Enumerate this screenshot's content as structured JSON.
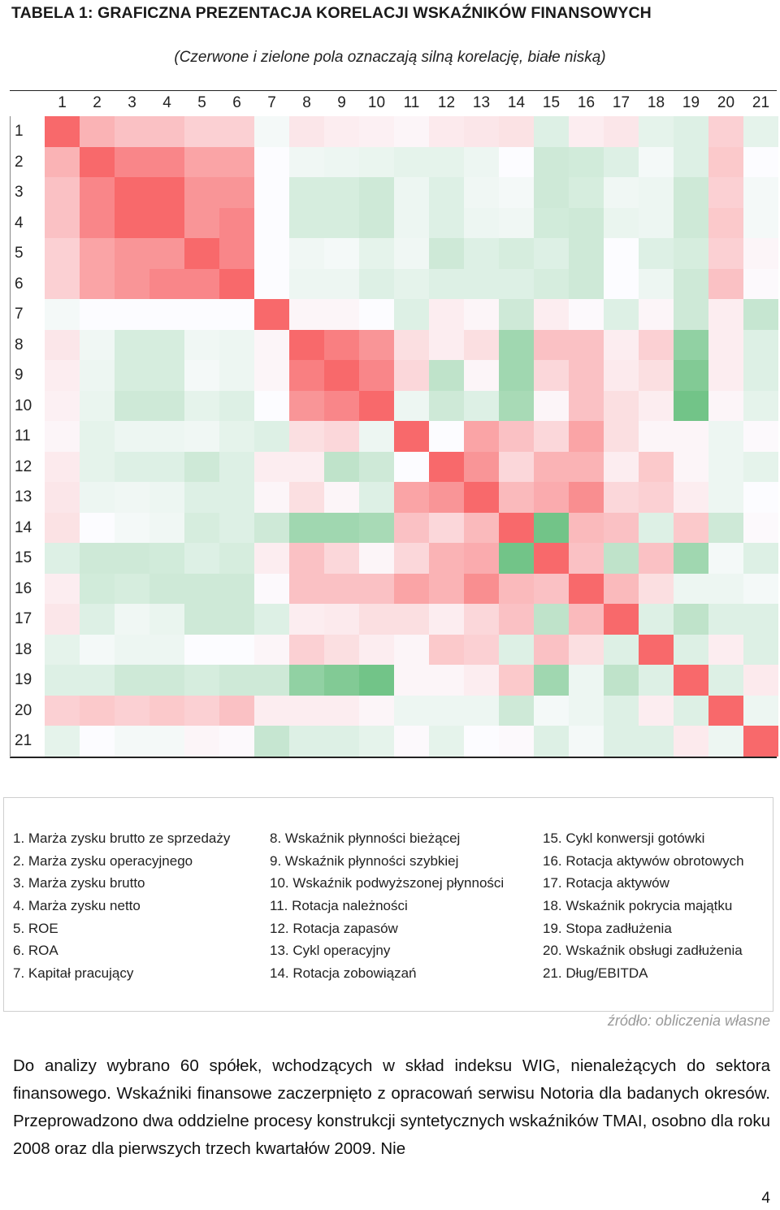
{
  "title": "TABELA 1: GRAFICZNA PREZENTACJA KORELACJI WSKAŹNIKÓW FINANSOWYCH",
  "subtitle": "(Czerwone i zielone pola oznaczają silną korelację, białe niską)",
  "heatmap": {
    "column_labels": [
      "1",
      "2",
      "3",
      "4",
      "5",
      "6",
      "7",
      "8",
      "9",
      "10",
      "11",
      "12",
      "13",
      "14",
      "15",
      "16",
      "17",
      "18",
      "19",
      "20",
      "21"
    ],
    "row_labels": [
      "1",
      "2",
      "3",
      "4",
      "5",
      "6",
      "7",
      "8",
      "9",
      "10",
      "11",
      "12",
      "13",
      "14",
      "15",
      "16",
      "17",
      "18",
      "19",
      "20",
      "21"
    ],
    "colors": {
      "strong_positive": "#f8696b",
      "neutral": "#fcfcff",
      "strong_negative": "#63be7b"
    },
    "correlation_levels": [
      [
        1.0,
        0.5,
        0.4,
        0.4,
        0.3,
        0.3,
        -0.05,
        0.15,
        0.1,
        0.08,
        0.05,
        0.12,
        0.15,
        0.18,
        -0.2,
        0.1,
        0.15,
        -0.15,
        -0.2,
        0.3,
        -0.15
      ],
      [
        0.5,
        1.0,
        0.8,
        0.8,
        0.6,
        0.6,
        0.0,
        -0.08,
        -0.1,
        -0.12,
        -0.15,
        -0.15,
        -0.1,
        0.0,
        -0.3,
        -0.28,
        -0.2,
        -0.05,
        -0.2,
        0.35,
        0.0
      ],
      [
        0.4,
        0.8,
        1.0,
        1.0,
        0.7,
        0.7,
        0.0,
        -0.25,
        -0.25,
        -0.3,
        -0.1,
        -0.2,
        -0.08,
        -0.05,
        -0.3,
        -0.25,
        -0.08,
        -0.1,
        -0.3,
        0.3,
        -0.05
      ],
      [
        0.4,
        0.8,
        1.0,
        1.0,
        0.7,
        0.8,
        0.0,
        -0.25,
        -0.25,
        -0.3,
        -0.1,
        -0.2,
        -0.1,
        -0.08,
        -0.28,
        -0.3,
        -0.12,
        -0.1,
        -0.3,
        0.35,
        -0.05
      ],
      [
        0.3,
        0.6,
        0.7,
        0.7,
        1.0,
        0.8,
        0.0,
        -0.08,
        -0.05,
        -0.15,
        -0.08,
        -0.3,
        -0.2,
        -0.25,
        -0.2,
        -0.3,
        0.0,
        -0.2,
        -0.25,
        0.3,
        0.05
      ],
      [
        0.3,
        0.6,
        0.7,
        0.8,
        0.8,
        1.0,
        0.0,
        -0.1,
        -0.1,
        -0.2,
        -0.15,
        -0.2,
        -0.2,
        -0.2,
        -0.25,
        -0.3,
        0.0,
        -0.1,
        -0.3,
        0.4,
        0.02
      ],
      [
        -0.05,
        0.0,
        0.0,
        0.0,
        0.0,
        0.0,
        1.0,
        0.05,
        0.05,
        0.0,
        -0.2,
        0.1,
        0.05,
        -0.3,
        0.1,
        0.02,
        -0.2,
        0.05,
        -0.3,
        0.1,
        -0.35
      ],
      [
        0.15,
        -0.08,
        -0.25,
        -0.25,
        -0.08,
        -0.1,
        0.05,
        1.0,
        0.85,
        0.7,
        0.2,
        0.1,
        0.2,
        -0.6,
        0.4,
        0.4,
        0.1,
        0.3,
        -0.7,
        0.1,
        -0.2
      ],
      [
        0.1,
        -0.1,
        -0.25,
        -0.25,
        -0.05,
        -0.1,
        0.05,
        0.85,
        1.0,
        0.8,
        0.25,
        -0.4,
        0.05,
        -0.6,
        0.25,
        0.4,
        0.12,
        0.2,
        -0.8,
        0.1,
        -0.2
      ],
      [
        0.08,
        -0.12,
        -0.3,
        -0.3,
        -0.15,
        -0.2,
        0.0,
        0.7,
        0.8,
        1.0,
        -0.1,
        -0.3,
        -0.2,
        -0.55,
        0.05,
        0.4,
        0.2,
        0.1,
        -0.9,
        0.05,
        -0.15
      ],
      [
        0.05,
        -0.15,
        -0.1,
        -0.1,
        -0.08,
        -0.15,
        -0.2,
        0.2,
        0.25,
        -0.1,
        1.0,
        0.0,
        0.6,
        0.4,
        0.25,
        0.6,
        0.2,
        0.05,
        0.05,
        -0.1,
        0.02
      ],
      [
        0.12,
        -0.15,
        -0.2,
        -0.2,
        -0.3,
        -0.2,
        0.1,
        0.1,
        -0.4,
        -0.3,
        0.0,
        1.0,
        0.7,
        0.25,
        0.5,
        0.5,
        0.1,
        0.35,
        0.05,
        -0.1,
        -0.15
      ],
      [
        0.15,
        -0.1,
        -0.08,
        -0.1,
        -0.2,
        -0.2,
        0.05,
        0.2,
        0.05,
        -0.2,
        0.6,
        0.7,
        1.0,
        0.45,
        0.55,
        0.75,
        0.25,
        0.3,
        0.1,
        -0.1,
        0.0
      ],
      [
        0.18,
        0.0,
        -0.05,
        -0.08,
        -0.25,
        -0.2,
        -0.3,
        -0.6,
        -0.6,
        -0.55,
        0.4,
        0.25,
        0.45,
        1.0,
        -0.9,
        0.45,
        0.4,
        -0.2,
        0.35,
        -0.3,
        0.02
      ],
      [
        -0.2,
        -0.3,
        -0.3,
        -0.28,
        -0.2,
        -0.25,
        0.1,
        0.4,
        0.25,
        0.05,
        0.25,
        0.5,
        0.55,
        -0.9,
        1.0,
        0.4,
        -0.4,
        0.4,
        -0.6,
        -0.05,
        -0.2
      ],
      [
        0.1,
        -0.28,
        -0.25,
        -0.3,
        -0.3,
        -0.3,
        0.02,
        0.4,
        0.4,
        0.4,
        0.6,
        0.5,
        0.75,
        0.45,
        0.4,
        1.0,
        0.45,
        0.2,
        -0.1,
        -0.1,
        -0.05
      ],
      [
        0.15,
        -0.2,
        -0.08,
        -0.12,
        -0.3,
        -0.3,
        -0.2,
        0.1,
        0.12,
        0.2,
        0.2,
        0.1,
        0.25,
        0.4,
        -0.4,
        0.45,
        1.0,
        -0.2,
        -0.4,
        -0.2,
        -0.2
      ],
      [
        -0.15,
        -0.05,
        -0.1,
        -0.1,
        0.0,
        0.0,
        0.05,
        0.3,
        0.2,
        0.1,
        0.05,
        0.35,
        0.3,
        -0.2,
        0.4,
        0.2,
        -0.2,
        1.0,
        -0.2,
        0.1,
        -0.2
      ],
      [
        -0.2,
        -0.2,
        -0.3,
        -0.3,
        -0.25,
        -0.3,
        -0.3,
        -0.7,
        -0.8,
        -0.9,
        0.05,
        0.05,
        0.1,
        0.35,
        -0.6,
        -0.1,
        -0.4,
        -0.2,
        1.0,
        -0.2,
        0.12
      ],
      [
        0.3,
        0.35,
        0.3,
        0.35,
        0.3,
        0.4,
        0.1,
        0.1,
        0.1,
        0.05,
        -0.1,
        -0.1,
        -0.1,
        -0.3,
        -0.05,
        -0.1,
        -0.2,
        0.1,
        -0.2,
        1.0,
        -0.1
      ],
      [
        -0.15,
        0.0,
        -0.05,
        -0.05,
        0.05,
        0.02,
        -0.35,
        -0.2,
        -0.2,
        -0.15,
        0.02,
        -0.15,
        0.0,
        0.02,
        -0.2,
        -0.05,
        -0.2,
        -0.2,
        0.12,
        -0.1,
        1.0
      ]
    ]
  },
  "legend": {
    "column1": [
      "1. Marża zysku brutto ze sprzedaży",
      "2. Marża zysku operacyjnego",
      "3. Marża zysku brutto",
      "4. Marża zysku netto",
      "5. ROE",
      "6. ROA",
      "7. Kapitał pracujący"
    ],
    "column2": [
      "8. Wskaźnik płynności bieżącej",
      "9. Wskaźnik płynności szybkiej",
      "10. Wskaźnik podwyższonej płynności",
      "11. Rotacja należności",
      "12. Rotacja zapasów",
      "13. Cykl operacyjny",
      "14. Rotacja zobowiązań"
    ],
    "column3": [
      "15. Cykl konwersji gotówki",
      "16. Rotacja aktywów obrotowych",
      "17. Rotacja aktywów",
      "18. Wskaźnik pokrycia majątku",
      "19. Stopa zadłużenia",
      "20. Wskaźnik obsługi zadłużenia",
      "21. Dług/EBITDA"
    ]
  },
  "source": "źródło: obliczenia własne",
  "body_text": "Do analizy wybrano 60 spółek, wchodzących w skład indeksu WIG, nienależących do sektora finansowego. Wskaźniki finansowe zaczerpnięto z opracowań serwisu Notoria dla badanych okresów. Przeprowadzono dwa oddzielne procesy konstrukcji syntetycznych wskaźników TMAI, osobno dla roku 2008 oraz dla pierwszych trzech kwartałów 2009. Nie",
  "page_number": "4"
}
